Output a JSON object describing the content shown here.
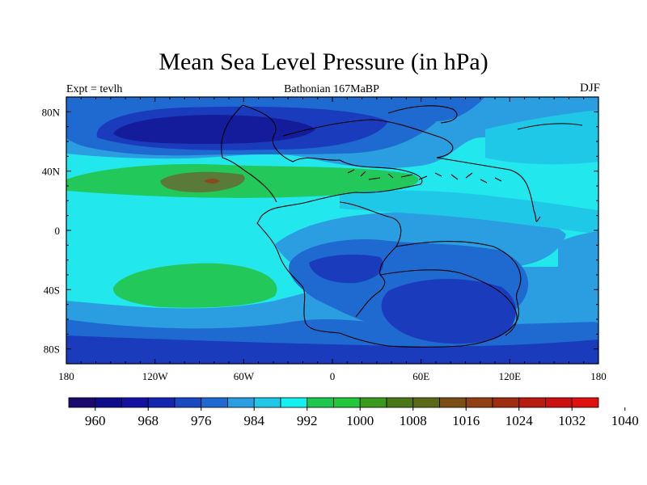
{
  "title": "Mean Sea Level Pressure (in hPa)",
  "left_label": "Expt = tevlh",
  "center_label": "Bathonian 167MaBP",
  "right_label": "DJF",
  "x_ticks": [
    {
      "lon": -180,
      "label": "180"
    },
    {
      "lon": -120,
      "label": "120W"
    },
    {
      "lon": -60,
      "label": "60W"
    },
    {
      "lon": 0,
      "label": "0"
    },
    {
      "lon": 60,
      "label": "60E"
    },
    {
      "lon": 120,
      "label": "120E"
    },
    {
      "lon": 180,
      "label": "180"
    }
  ],
  "y_ticks": [
    {
      "lat": 80,
      "label": "80N"
    },
    {
      "lat": 40,
      "label": "40N"
    },
    {
      "lat": 0,
      "label": "0"
    },
    {
      "lat": -40,
      "label": "40S"
    },
    {
      "lat": -80,
      "label": "80S"
    }
  ],
  "colorbar": {
    "colors": [
      "#1a0a6e",
      "#0e0c8a",
      "#1410a0",
      "#1426b0",
      "#1a4ac2",
      "#1e6ad0",
      "#2a9ee0",
      "#20c8e8",
      "#14f0f0",
      "#1ec850",
      "#22c83a",
      "#3a9a1e",
      "#4a7818",
      "#5a6a16",
      "#7a4e14",
      "#904014",
      "#a02c12",
      "#b81c10",
      "#cc1010",
      "#e01010"
    ],
    "labels": [
      {
        "index": 1,
        "text": "960"
      },
      {
        "index": 3,
        "text": "968"
      },
      {
        "index": 5,
        "text": "976"
      },
      {
        "index": 7,
        "text": "984"
      },
      {
        "index": 9,
        "text": "992"
      },
      {
        "index": 11,
        "text": "1000"
      },
      {
        "index": 13,
        "text": "1008"
      },
      {
        "index": 15,
        "text": "1016"
      },
      {
        "index": 17,
        "text": "1024"
      },
      {
        "index": 19,
        "text": "1032"
      },
      {
        "index": 21,
        "text": "1040"
      }
    ]
  },
  "colors": {
    "low_deep": "#141c9c",
    "low_mid": "#1a3cbc",
    "low": "#1e6ad0",
    "mid_blue": "#2a9ee0",
    "cyan": "#20c8e8",
    "pale_cyan": "#22e8ee",
    "green": "#22c85a",
    "green_dark": "#3aa046",
    "high": "#5a7a3a",
    "high_core": "#8a4a1e"
  }
}
